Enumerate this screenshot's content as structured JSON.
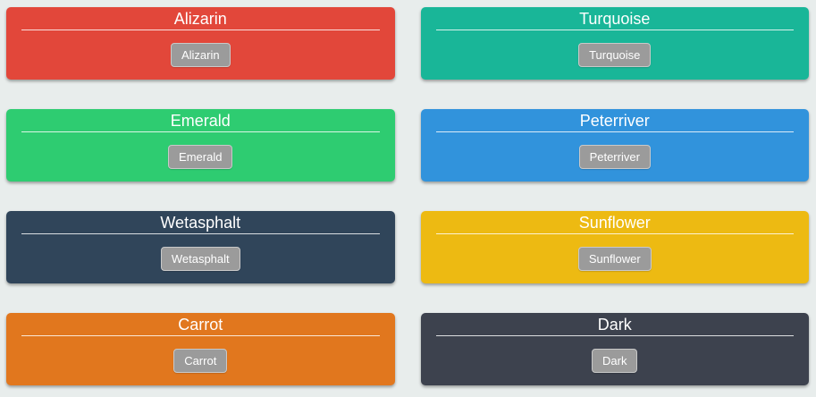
{
  "page": {
    "background_color": "#e8edec"
  },
  "button_style": {
    "background_color": "#9b9b9b",
    "border_color": "#c9c9c9",
    "text_color": "#ffffff"
  },
  "cards": [
    {
      "title": "Alizarin",
      "button_label": "Alizarin",
      "color": "#e2473a"
    },
    {
      "title": "Turquoise",
      "button_label": "Turquoise",
      "color": "#19b698"
    },
    {
      "title": "Emerald",
      "button_label": "Emerald",
      "color": "#2ecc71"
    },
    {
      "title": "Peterriver",
      "button_label": "Peterriver",
      "color": "#3193dc"
    },
    {
      "title": "Wetasphalt",
      "button_label": "Wetasphalt",
      "color": "#30455a"
    },
    {
      "title": "Sunflower",
      "button_label": "Sunflower",
      "color": "#edba12"
    },
    {
      "title": "Carrot",
      "button_label": "Carrot",
      "color": "#e1771e"
    },
    {
      "title": "Dark",
      "button_label": "Dark",
      "color": "#3d424e"
    }
  ]
}
